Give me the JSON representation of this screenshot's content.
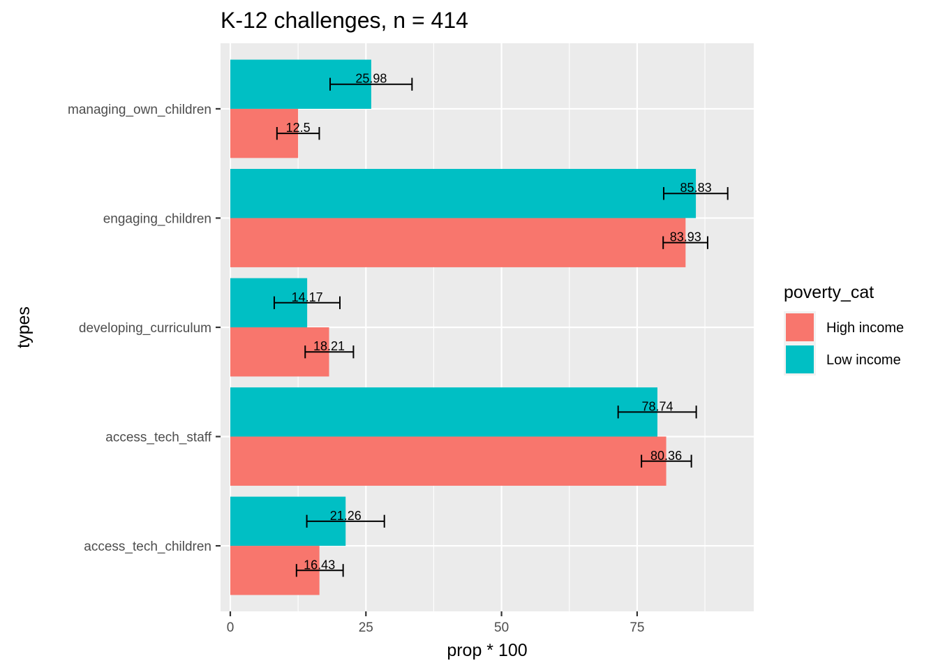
{
  "chart_data": {
    "type": "bar",
    "orientation": "horizontal",
    "title": "K-12 challenges, n = 414",
    "xlabel": "prop * 100",
    "ylabel": "types",
    "xlim": [
      -1.8,
      96.5
    ],
    "x_ticks": [
      0,
      25,
      50,
      75
    ],
    "categories": [
      "access_tech_children",
      "access_tech_staff",
      "developing_curriculum",
      "engaging_children",
      "managing_own_children"
    ],
    "legend": {
      "title": "poverty_cat",
      "position": "right"
    },
    "grid": true,
    "series": [
      {
        "name": "High income",
        "color": "#F8766D",
        "values": [
          16.43,
          80.36,
          18.21,
          83.93,
          12.5
        ],
        "labels": [
          "16.43",
          "80.36",
          "18.21",
          "83.93",
          "12.5"
        ],
        "error_low": [
          12.2,
          75.8,
          13.8,
          79.8,
          8.6
        ],
        "error_high": [
          20.8,
          85.0,
          22.7,
          88.0,
          16.4
        ]
      },
      {
        "name": "Low income",
        "color": "#00BFC4",
        "values": [
          21.26,
          78.74,
          14.17,
          85.83,
          25.98
        ],
        "labels": [
          "21.26",
          "78.74",
          "14.17",
          "85.83",
          "25.98"
        ],
        "error_low": [
          14.1,
          71.5,
          8.1,
          79.9,
          18.4
        ],
        "error_high": [
          28.4,
          85.9,
          20.2,
          91.7,
          33.5
        ]
      }
    ]
  }
}
